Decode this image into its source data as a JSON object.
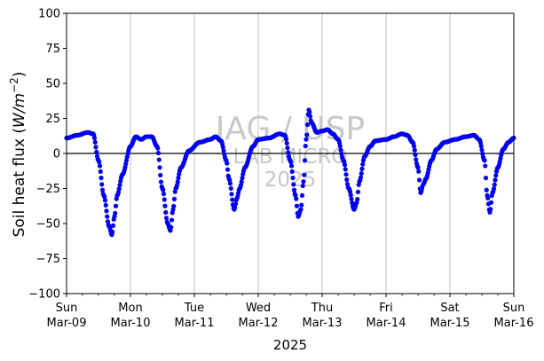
{
  "chart_data": {
    "type": "scatter",
    "title": "",
    "xlabel": "2025",
    "ylabel": "Soil heat flux (W/m⁻²)",
    "ylabel_math": {
      "prefix": "Soil heat flux (",
      "unit": "W/m",
      "exp": "−2",
      "suffix": ")"
    },
    "ylim": [
      -100,
      100
    ],
    "xlim": [
      "2025-03-09",
      "2025-03-16"
    ],
    "y_ticks": [
      "−100",
      "−75",
      "−50",
      "−25",
      "0",
      "25",
      "50",
      "75",
      "100"
    ],
    "x_ticks": [
      {
        "day": "Sun",
        "date": "Mar-09"
      },
      {
        "day": "Mon",
        "date": "Mar-10"
      },
      {
        "day": "Tue",
        "date": "Mar-11"
      },
      {
        "day": "Wed",
        "date": "Mar-12"
      },
      {
        "day": "Thu",
        "date": "Mar-13"
      },
      {
        "day": "Fri",
        "date": "Mar-14"
      },
      {
        "day": "Sat",
        "date": "Mar-15"
      },
      {
        "day": "Sun",
        "date": "Mar-16"
      }
    ],
    "grid": "vertical",
    "zero_line": true,
    "marker_color": "#0000ee",
    "watermark": [
      "IAG / USP",
      "LAB MICRO",
      "2025"
    ],
    "series": [
      {
        "name": "",
        "points": [
          {
            "x": "2025-03-09 00:00",
            "y": 11
          },
          {
            "x": "2025-03-09 04:00",
            "y": 13
          },
          {
            "x": "2025-03-09 08:00",
            "y": 15
          },
          {
            "x": "2025-03-09 10:00",
            "y": 14
          },
          {
            "x": "2025-03-09 12:00",
            "y": -5
          },
          {
            "x": "2025-03-09 14:00",
            "y": -30
          },
          {
            "x": "2025-03-09 16:00",
            "y": -52
          },
          {
            "x": "2025-03-09 17:00",
            "y": -58
          },
          {
            "x": "2025-03-09 18:00",
            "y": -45
          },
          {
            "x": "2025-03-09 19:00",
            "y": -30
          },
          {
            "x": "2025-03-09 21:00",
            "y": -15
          },
          {
            "x": "2025-03-10 00:00",
            "y": 5
          },
          {
            "x": "2025-03-10 02:00",
            "y": 12
          },
          {
            "x": "2025-03-10 04:00",
            "y": 10
          },
          {
            "x": "2025-03-10 06:00",
            "y": 12
          },
          {
            "x": "2025-03-10 08:00",
            "y": 12
          },
          {
            "x": "2025-03-10 10:00",
            "y": 5
          },
          {
            "x": "2025-03-10 12:00",
            "y": -25
          },
          {
            "x": "2025-03-10 14:00",
            "y": -50
          },
          {
            "x": "2025-03-10 15:00",
            "y": -55
          },
          {
            "x": "2025-03-10 16:00",
            "y": -40
          },
          {
            "x": "2025-03-10 17:00",
            "y": -25
          },
          {
            "x": "2025-03-10 19:00",
            "y": -10
          },
          {
            "x": "2025-03-10 22:00",
            "y": 2
          },
          {
            "x": "2025-03-11 02:00",
            "y": 8
          },
          {
            "x": "2025-03-11 06:00",
            "y": 10
          },
          {
            "x": "2025-03-11 08:00",
            "y": 12
          },
          {
            "x": "2025-03-11 10:00",
            "y": 9
          },
          {
            "x": "2025-03-11 12:00",
            "y": -5
          },
          {
            "x": "2025-03-11 13:00",
            "y": -18
          },
          {
            "x": "2025-03-11 15:00",
            "y": -40
          },
          {
            "x": "2025-03-11 16:00",
            "y": -32
          },
          {
            "x": "2025-03-11 17:00",
            "y": -25
          },
          {
            "x": "2025-03-11 19:00",
            "y": -10
          },
          {
            "x": "2025-03-11 22:00",
            "y": 5
          },
          {
            "x": "2025-03-12 00:00",
            "y": 10
          },
          {
            "x": "2025-03-12 04:00",
            "y": 11
          },
          {
            "x": "2025-03-12 08:00",
            "y": 14
          },
          {
            "x": "2025-03-12 10:00",
            "y": 13
          },
          {
            "x": "2025-03-12 12:00",
            "y": -5
          },
          {
            "x": "2025-03-12 14:00",
            "y": -30
          },
          {
            "x": "2025-03-12 15:00",
            "y": -45
          },
          {
            "x": "2025-03-12 16:00",
            "y": -40
          },
          {
            "x": "2025-03-12 17:00",
            "y": -20
          },
          {
            "x": "2025-03-12 18:00",
            "y": 10
          },
          {
            "x": "2025-03-12 19:00",
            "y": 31
          },
          {
            "x": "2025-03-12 20:00",
            "y": 22
          },
          {
            "x": "2025-03-12 22:00",
            "y": 15
          },
          {
            "x": "2025-03-13 00:00",
            "y": 16
          },
          {
            "x": "2025-03-13 02:00",
            "y": 17
          },
          {
            "x": "2025-03-13 04:00",
            "y": 14
          },
          {
            "x": "2025-03-13 06:00",
            "y": 10
          },
          {
            "x": "2025-03-13 08:00",
            "y": -5
          },
          {
            "x": "2025-03-13 10:00",
            "y": -25
          },
          {
            "x": "2025-03-13 12:00",
            "y": -40
          },
          {
            "x": "2025-03-13 13:00",
            "y": -35
          },
          {
            "x": "2025-03-13 14:00",
            "y": -20
          },
          {
            "x": "2025-03-13 16:00",
            "y": -2
          },
          {
            "x": "2025-03-13 18:00",
            "y": 5
          },
          {
            "x": "2025-03-13 20:00",
            "y": 9
          },
          {
            "x": "2025-03-14 00:00",
            "y": 10
          },
          {
            "x": "2025-03-14 03:00",
            "y": 12
          },
          {
            "x": "2025-03-14 06:00",
            "y": 14
          },
          {
            "x": "2025-03-14 08:00",
            "y": 13
          },
          {
            "x": "2025-03-14 10:00",
            "y": 8
          },
          {
            "x": "2025-03-14 12:00",
            "y": -10
          },
          {
            "x": "2025-03-14 13:00",
            "y": -28
          },
          {
            "x": "2025-03-14 14:00",
            "y": -22
          },
          {
            "x": "2025-03-14 15:00",
            "y": -18
          },
          {
            "x": "2025-03-14 17:00",
            "y": -5
          },
          {
            "x": "2025-03-14 19:00",
            "y": 3
          },
          {
            "x": "2025-03-14 22:00",
            "y": 8
          },
          {
            "x": "2025-03-15 02:00",
            "y": 10
          },
          {
            "x": "2025-03-15 06:00",
            "y": 12
          },
          {
            "x": "2025-03-15 09:00",
            "y": 13
          },
          {
            "x": "2025-03-15 11:00",
            "y": 10
          },
          {
            "x": "2025-03-15 13:00",
            "y": -5
          },
          {
            "x": "2025-03-15 14:00",
            "y": -30
          },
          {
            "x": "2025-03-15 15:00",
            "y": -42
          },
          {
            "x": "2025-03-15 16:00",
            "y": -28
          },
          {
            "x": "2025-03-15 18:00",
            "y": -10
          },
          {
            "x": "2025-03-15 20:00",
            "y": 3
          },
          {
            "x": "2025-03-15 22:00",
            "y": 8
          },
          {
            "x": "2025-03-16 00:00",
            "y": 11
          }
        ]
      }
    ]
  }
}
